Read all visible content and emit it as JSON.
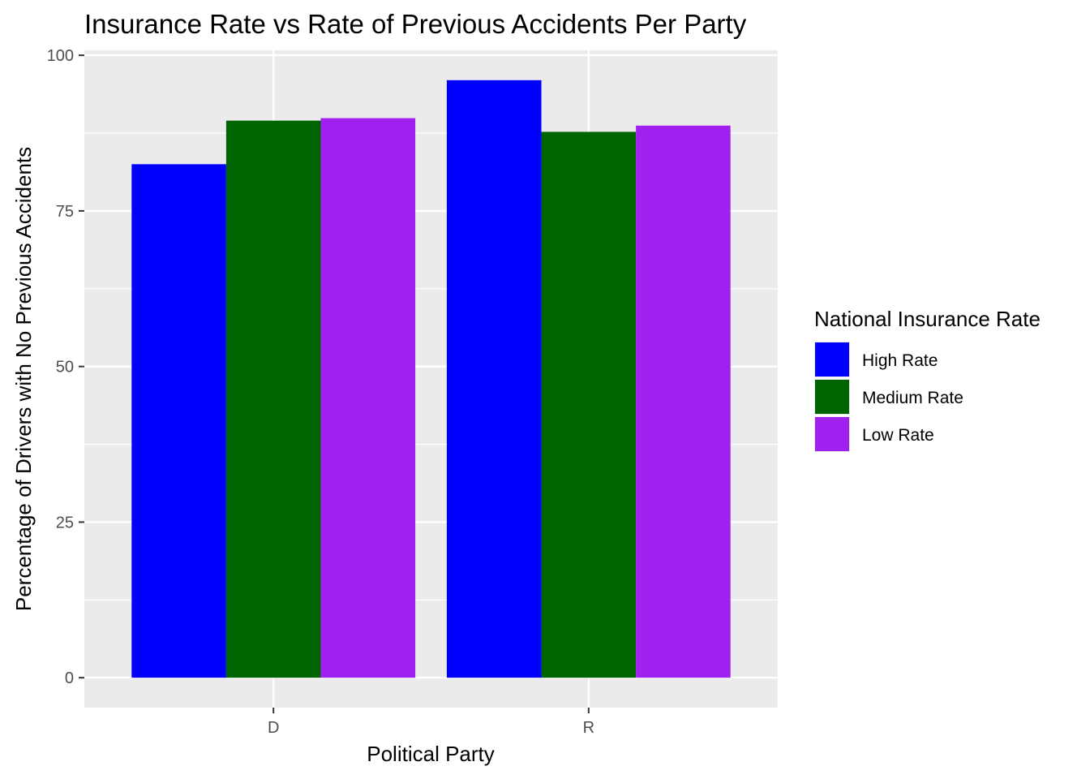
{
  "chart_data": {
    "type": "bar",
    "title": "Insurance Rate vs Rate of Previous Accidents Per Party",
    "xlabel": "Political Party",
    "ylabel": "Percentage of Drivers with No Previous Accidents",
    "categories": [
      "D",
      "R"
    ],
    "series": [
      {
        "name": "High Rate",
        "color": "#0000ff",
        "values": [
          82.5,
          96.0
        ]
      },
      {
        "name": "Medium Rate",
        "color": "#006400",
        "values": [
          89.5,
          87.7
        ]
      },
      {
        "name": "Low Rate",
        "color": "#a020f0",
        "values": [
          89.9,
          88.7
        ]
      }
    ],
    "ylim": [
      -4.8,
      100.8
    ],
    "yticks": [
      0,
      25,
      50,
      75,
      100
    ],
    "grid": true,
    "legend": {
      "title": "National Insurance Rate",
      "position": "right"
    },
    "colors": {
      "panel_background": "#ebebeb",
      "grid_line": "#ffffff"
    }
  }
}
